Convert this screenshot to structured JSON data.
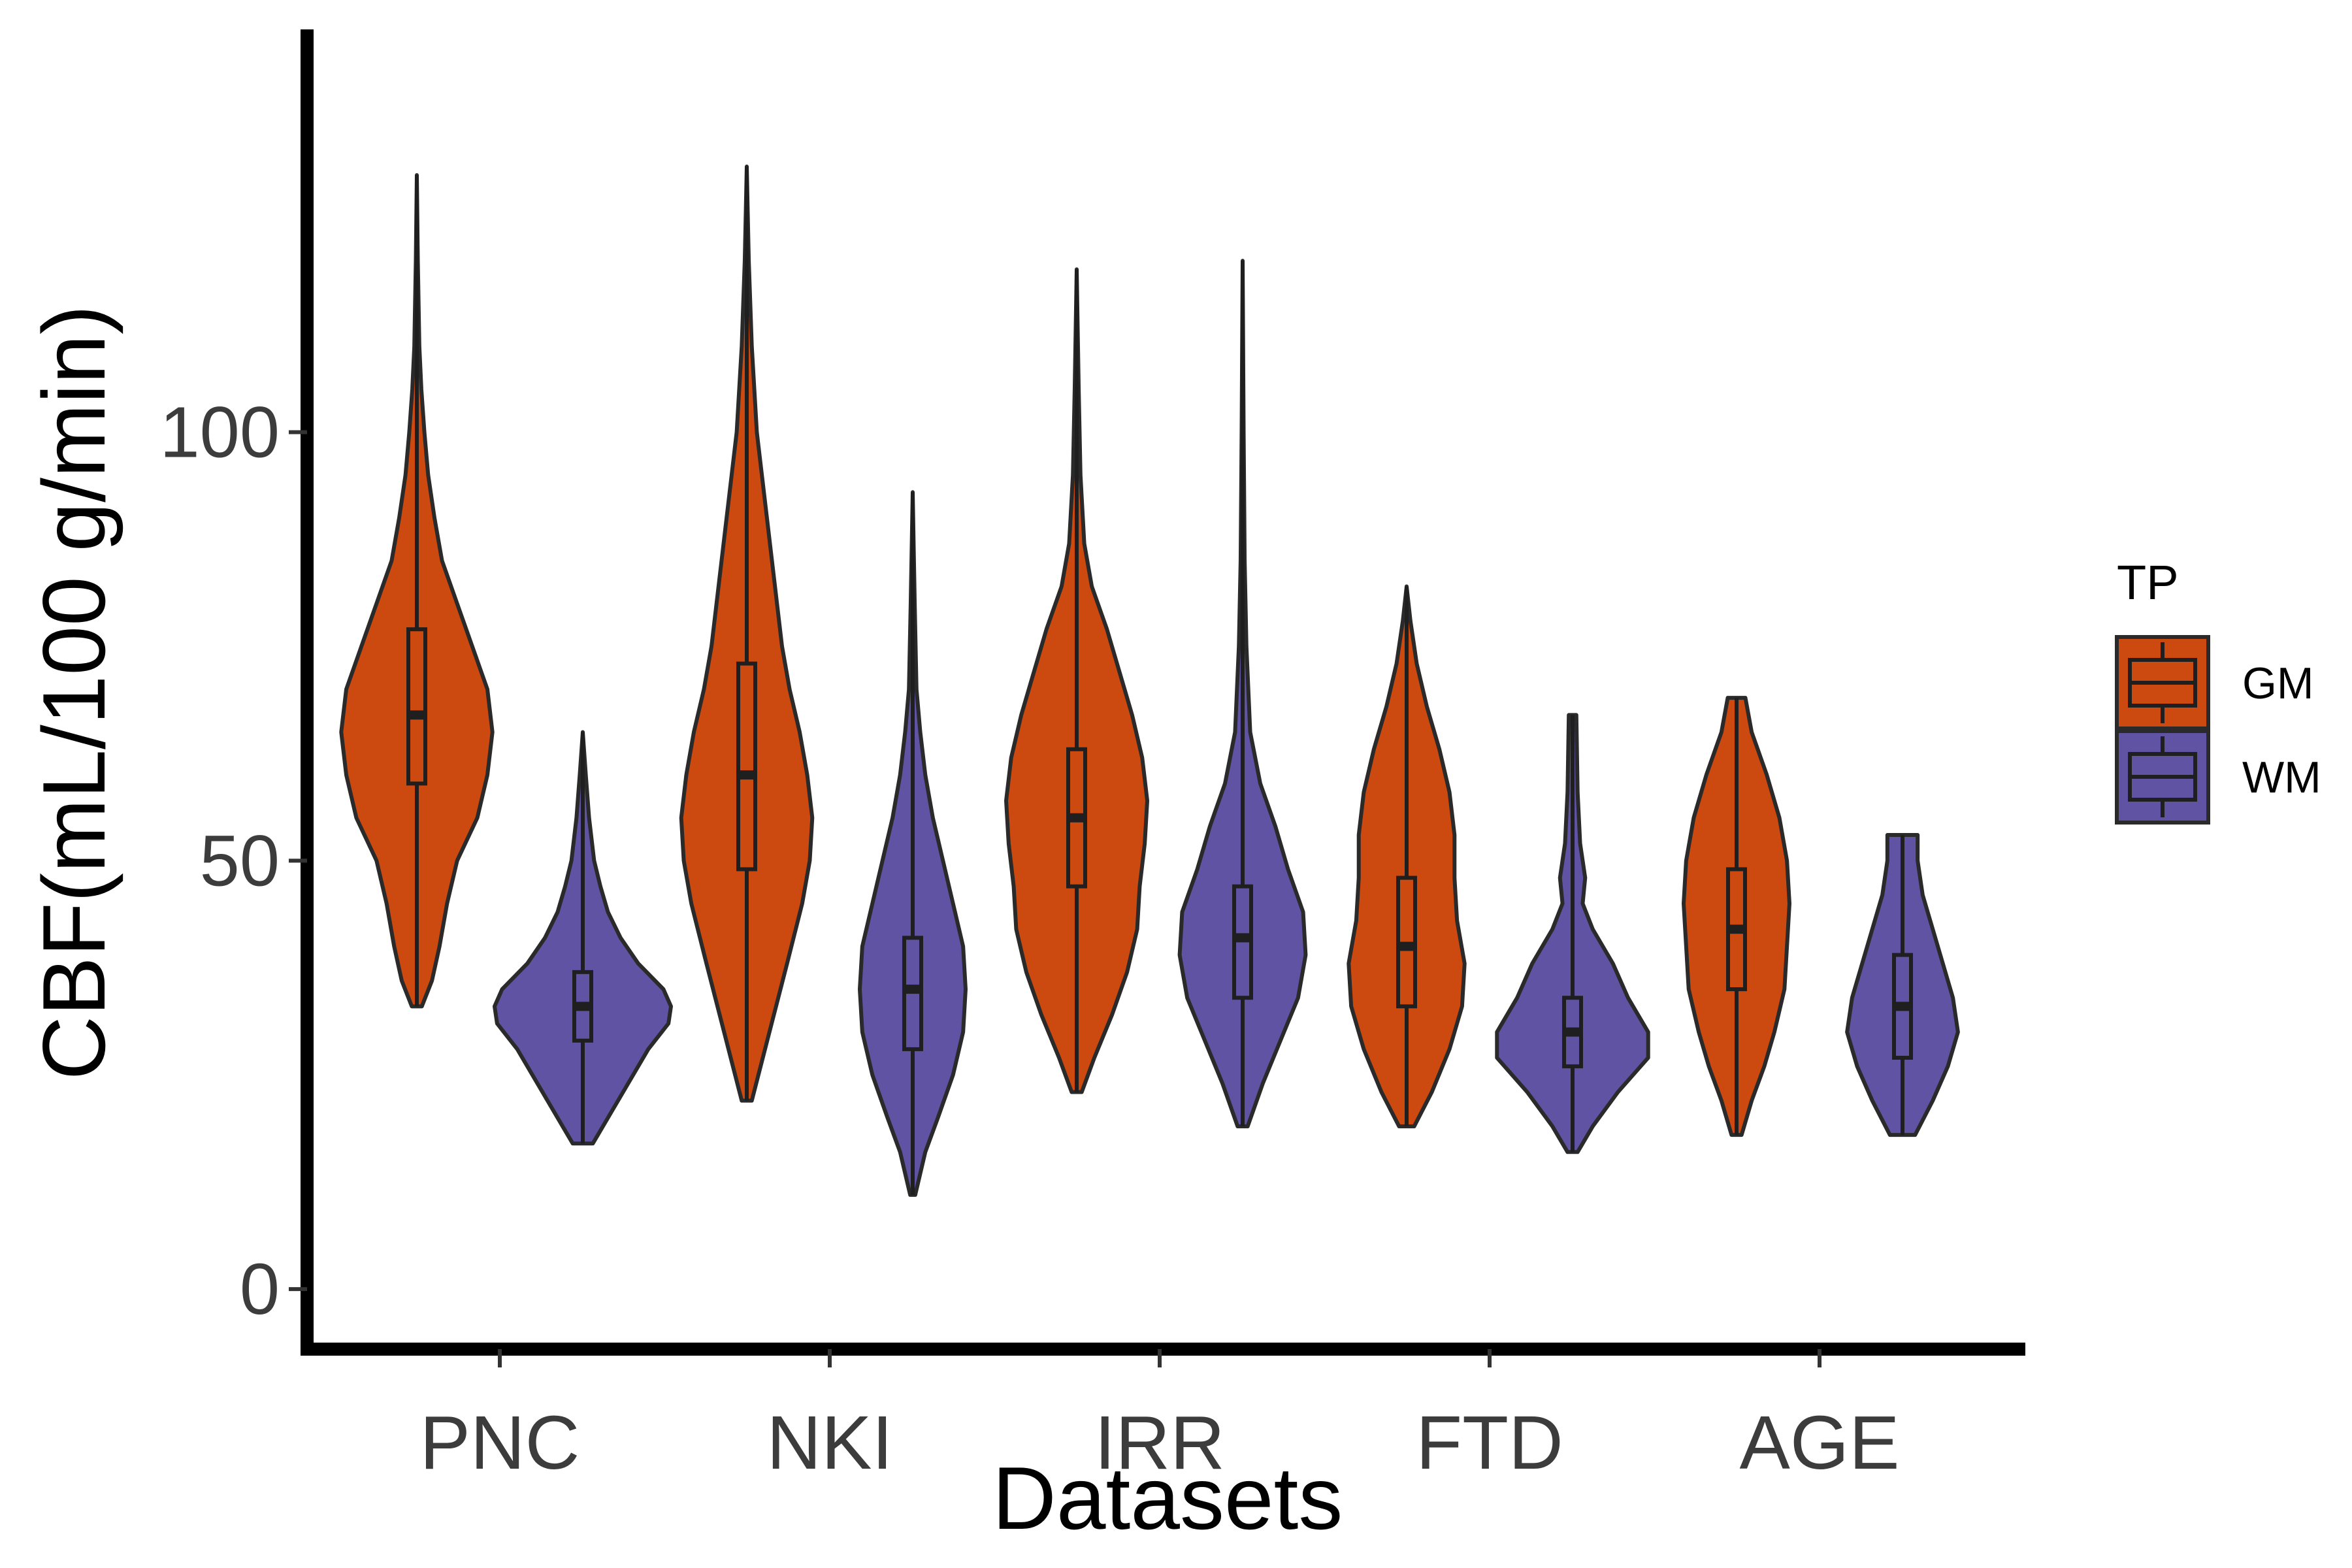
{
  "chart_data": {
    "type": "violin",
    "xlabel": "Datasets",
    "ylabel": "CBF(mL/100 g/min)",
    "ylim": [
      -7,
      147
    ],
    "yticks": [
      0,
      50,
      100
    ],
    "categories": [
      "PNC",
      "NKI",
      "IRR",
      "FTD",
      "AGE"
    ],
    "legend": {
      "title": "TP",
      "position": "right",
      "entries": [
        {
          "name": "GM",
          "color": "#cc4a0f"
        },
        {
          "name": "WM",
          "color": "#6153a3"
        }
      ]
    },
    "series": [
      {
        "name": "GM",
        "color": "#cc4a0f",
        "groups": [
          {
            "category": "PNC",
            "min": 33,
            "q1": 59,
            "median": 67,
            "q3": 77,
            "max": 130,
            "profile": [
              [
                33,
                0.02
              ],
              [
                36,
                0.06
              ],
              [
                40,
                0.09
              ],
              [
                45,
                0.12
              ],
              [
                50,
                0.16
              ],
              [
                55,
                0.24
              ],
              [
                60,
                0.28
              ],
              [
                65,
                0.3
              ],
              [
                70,
                0.28
              ],
              [
                75,
                0.22
              ],
              [
                80,
                0.16
              ],
              [
                85,
                0.1
              ],
              [
                90,
                0.07
              ],
              [
                95,
                0.045
              ],
              [
                100,
                0.03
              ],
              [
                105,
                0.018
              ],
              [
                110,
                0.01
              ],
              [
                120,
                0.004
              ],
              [
                130,
                0
              ]
            ]
          },
          {
            "category": "NKI",
            "min": 22,
            "q1": 49,
            "median": 60,
            "q3": 73,
            "max": 131,
            "profile": [
              [
                22,
                0.02
              ],
              [
                30,
                0.09
              ],
              [
                38,
                0.16
              ],
              [
                45,
                0.22
              ],
              [
                50,
                0.25
              ],
              [
                55,
                0.26
              ],
              [
                60,
                0.24
              ],
              [
                65,
                0.21
              ],
              [
                70,
                0.17
              ],
              [
                75,
                0.14
              ],
              [
                80,
                0.12
              ],
              [
                85,
                0.1
              ],
              [
                90,
                0.08
              ],
              [
                95,
                0.06
              ],
              [
                100,
                0.04
              ],
              [
                105,
                0.03
              ],
              [
                110,
                0.02
              ],
              [
                120,
                0.008
              ],
              [
                131,
                0
              ]
            ]
          },
          {
            "category": "IRR",
            "min": 23,
            "q1": 47,
            "median": 55,
            "q3": 63,
            "max": 119,
            "profile": [
              [
                23,
                0.02
              ],
              [
                27,
                0.07
              ],
              [
                32,
                0.14
              ],
              [
                37,
                0.2
              ],
              [
                42,
                0.24
              ],
              [
                47,
                0.25
              ],
              [
                52,
                0.27
              ],
              [
                57,
                0.28
              ],
              [
                62,
                0.26
              ],
              [
                67,
                0.22
              ],
              [
                72,
                0.17
              ],
              [
                77,
                0.12
              ],
              [
                82,
                0.06
              ],
              [
                87,
                0.03
              ],
              [
                95,
                0.015
              ],
              [
                105,
                0.008
              ],
              [
                119,
                0
              ]
            ]
          },
          {
            "category": "FTD",
            "min": 19,
            "q1": 33,
            "median": 40,
            "q3": 48,
            "max": 82,
            "profile": [
              [
                19,
                0.03
              ],
              [
                23,
                0.1
              ],
              [
                28,
                0.17
              ],
              [
                33,
                0.22
              ],
              [
                38,
                0.23
              ],
              [
                43,
                0.2
              ],
              [
                48,
                0.19
              ],
              [
                53,
                0.19
              ],
              [
                58,
                0.17
              ],
              [
                63,
                0.13
              ],
              [
                68,
                0.08
              ],
              [
                73,
                0.04
              ],
              [
                78,
                0.015
              ],
              [
                82,
                0
              ]
            ]
          },
          {
            "category": "AGE",
            "min": 18,
            "q1": 35,
            "median": 42,
            "q3": 49,
            "max": 69,
            "profile": [
              [
                18,
                0.02
              ],
              [
                22,
                0.06
              ],
              [
                26,
                0.11
              ],
              [
                30,
                0.15
              ],
              [
                35,
                0.19
              ],
              [
                40,
                0.2
              ],
              [
                45,
                0.21
              ],
              [
                50,
                0.2
              ],
              [
                55,
                0.17
              ],
              [
                60,
                0.12
              ],
              [
                65,
                0.06
              ],
              [
                69,
                0.035
              ]
            ]
          }
        ]
      },
      {
        "name": "WM",
        "color": "#6153a3",
        "groups": [
          {
            "category": "PNC",
            "min": 17,
            "q1": 29,
            "median": 33,
            "q3": 37,
            "max": 65,
            "profile": [
              [
                17,
                0.04
              ],
              [
                20,
                0.1
              ],
              [
                24,
                0.18
              ],
              [
                28,
                0.26
              ],
              [
                31,
                0.34
              ],
              [
                33,
                0.35
              ],
              [
                35,
                0.32
              ],
              [
                38,
                0.22
              ],
              [
                41,
                0.15
              ],
              [
                44,
                0.1
              ],
              [
                47,
                0.07
              ],
              [
                50,
                0.045
              ],
              [
                55,
                0.025
              ],
              [
                60,
                0.012
              ],
              [
                65,
                0
              ]
            ]
          },
          {
            "category": "NKI",
            "min": 11,
            "q1": 28,
            "median": 35,
            "q3": 41,
            "max": 93,
            "profile": [
              [
                11,
                0.01
              ],
              [
                16,
                0.05
              ],
              [
                20,
                0.1
              ],
              [
                25,
                0.16
              ],
              [
                30,
                0.2
              ],
              [
                35,
                0.21
              ],
              [
                40,
                0.2
              ],
              [
                45,
                0.16
              ],
              [
                50,
                0.12
              ],
              [
                55,
                0.08
              ],
              [
                60,
                0.05
              ],
              [
                65,
                0.03
              ],
              [
                70,
                0.015
              ],
              [
                80,
                0.008
              ],
              [
                93,
                0
              ]
            ]
          },
          {
            "category": "IRR",
            "min": 19,
            "q1": 34,
            "median": 41,
            "q3": 47,
            "max": 120,
            "profile": [
              [
                19,
                0.02
              ],
              [
                24,
                0.08
              ],
              [
                29,
                0.15
              ],
              [
                34,
                0.22
              ],
              [
                39,
                0.25
              ],
              [
                44,
                0.24
              ],
              [
                49,
                0.18
              ],
              [
                54,
                0.13
              ],
              [
                59,
                0.07
              ],
              [
                65,
                0.03
              ],
              [
                75,
                0.015
              ],
              [
                85,
                0.008
              ],
              [
                100,
                0.004
              ],
              [
                120,
                0
              ]
            ]
          },
          {
            "category": "FTD",
            "min": 16,
            "q1": 26,
            "median": 30,
            "q3": 34,
            "max": 67,
            "profile": [
              [
                16,
                0.02
              ],
              [
                19,
                0.08
              ],
              [
                23,
                0.18
              ],
              [
                27,
                0.3
              ],
              [
                30,
                0.3
              ],
              [
                34,
                0.22
              ],
              [
                38,
                0.16
              ],
              [
                42,
                0.08
              ],
              [
                45,
                0.04
              ],
              [
                48,
                0.05
              ],
              [
                52,
                0.03
              ],
              [
                58,
                0.02
              ],
              [
                67,
                0.015
              ]
            ]
          },
          {
            "category": "AGE",
            "min": 18,
            "q1": 27,
            "median": 33,
            "q3": 39,
            "max": 53,
            "profile": [
              [
                18,
                0.05
              ],
              [
                22,
                0.12
              ],
              [
                26,
                0.18
              ],
              [
                30,
                0.22
              ],
              [
                34,
                0.2
              ],
              [
                38,
                0.16
              ],
              [
                42,
                0.12
              ],
              [
                46,
                0.08
              ],
              [
                50,
                0.06
              ],
              [
                53,
                0.06
              ]
            ]
          }
        ]
      }
    ]
  }
}
